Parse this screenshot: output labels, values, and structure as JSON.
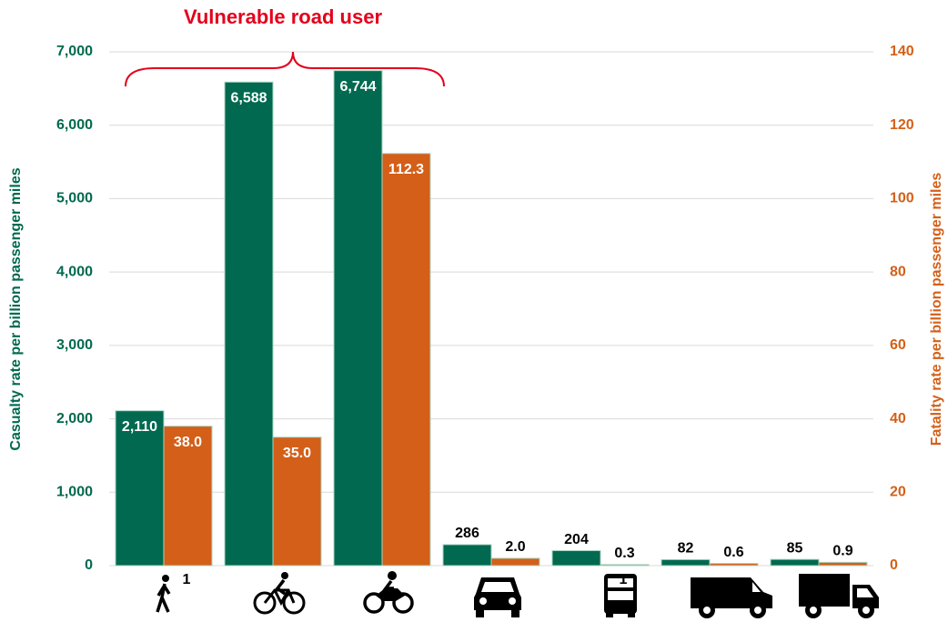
{
  "chart_data": {
    "type": "bar",
    "annotation": "Vulnerable road user",
    "categories": [
      null,
      null,
      null,
      null,
      null,
      null,
      null
    ],
    "category_footnotes": [
      "1",
      null,
      null,
      null,
      "1",
      null,
      null
    ],
    "y_label": "Casualty rate per billion passenger miles",
    "y2_label": "Fatality rate per billion passenger miles",
    "series": [
      {
        "name": "Casualty rate",
        "color": "#00694f",
        "values": [
          2110,
          6588,
          6744,
          286,
          204,
          82,
          85
        ],
        "value_labels": [
          "2,110",
          "6,588",
          "6,744",
          "286",
          "204",
          "82",
          "85"
        ]
      },
      {
        "name": "Fatality rate",
        "color": "#d45f18",
        "axis": "y2",
        "values": [
          38.0,
          35.0,
          112.3,
          2.0,
          0.3,
          0.6,
          0.9
        ],
        "value_labels": [
          "38.0",
          "35.0",
          "112.3",
          "2.0",
          "0.3",
          "0.6",
          "0.9"
        ]
      }
    ],
    "ylim": [
      0,
      7000
    ],
    "yticks": [
      0,
      {
        "value": 1000,
        "label": "1,000"
      },
      {
        "value": 2000,
        "label": "2,000"
      },
      {
        "value": 3000,
        "label": "3,000"
      },
      {
        "value": 4000,
        "label": "4,000"
      },
      {
        "value": 5000,
        "label": "5,000"
      },
      {
        "value": 6000,
        "label": "6,000"
      },
      {
        "value": 7000,
        "label": "7,000"
      }
    ],
    "y2lim": [
      0,
      140
    ],
    "y2ticks": [
      0,
      20,
      40,
      60,
      80,
      100,
      120,
      140
    ],
    "y_color": "#00694f",
    "y2_color": "#d45f18",
    "annotation_color": "#e3001b",
    "grid": true
  }
}
